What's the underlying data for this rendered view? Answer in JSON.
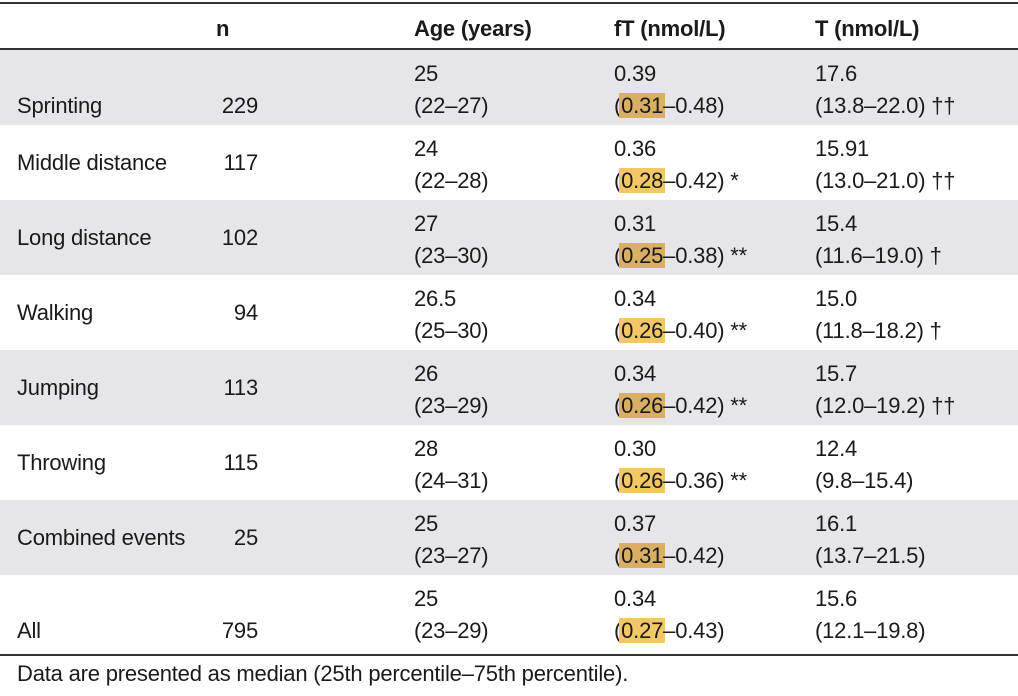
{
  "header": {
    "event": "",
    "n": "n",
    "age": "Age (years)",
    "ft": "fT (nmol/L)",
    "t": "T (nmol/L)"
  },
  "rows": [
    {
      "event": "Sprinting",
      "n": "229",
      "age_median": "25",
      "age_range": "(22–27)",
      "ft_median": "0.39",
      "ft_open": "(",
      "ft_low": "0.31",
      "ft_rest": "–0.48)",
      "t_median": "17.6",
      "t_range": "(13.8–22.0) ††"
    },
    {
      "event": "Middle distance",
      "n": "117",
      "age_median": "24",
      "age_range": "(22–28)",
      "ft_median": "0.36",
      "ft_open": "(",
      "ft_low": "0.28",
      "ft_rest": "–0.42) *",
      "t_median": "15.91",
      "t_range": "(13.0–21.0) ††"
    },
    {
      "event": "Long distance",
      "n": "102",
      "age_median": "27",
      "age_range": "(23–30)",
      "ft_median": "0.31",
      "ft_open": "(",
      "ft_low": "0.25",
      "ft_rest": "–0.38) **",
      "t_median": "15.4",
      "t_range": "(11.6–19.0) †"
    },
    {
      "event": "Walking",
      "n": "94",
      "age_median": "26.5",
      "age_range": "(25–30)",
      "ft_median": "0.34",
      "ft_open": "(",
      "ft_low": "0.26",
      "ft_rest": "–0.40) **",
      "t_median": "15.0",
      "t_range": "(11.8–18.2) †"
    },
    {
      "event": "Jumping",
      "n": "113",
      "age_median": "26",
      "age_range": "(23–29)",
      "ft_median": "0.34",
      "ft_open": "(",
      "ft_low": "0.26",
      "ft_rest": "–0.42) **",
      "t_median": "15.7",
      "t_range": "(12.0–19.2) ††"
    },
    {
      "event": "Throwing",
      "n": "115",
      "age_median": "28",
      "age_range": "(24–31)",
      "ft_median": "0.30",
      "ft_open": "(",
      "ft_low": "0.26",
      "ft_rest": "–0.36) **",
      "t_median": "12.4",
      "t_range": "(9.8–15.4)"
    },
    {
      "event": "Combined events",
      "n": "25",
      "age_median": "25",
      "age_range": "(23–27)",
      "ft_median": "0.37",
      "ft_open": "(",
      "ft_low": "0.31",
      "ft_rest": "–0.42)",
      "t_median": "16.1",
      "t_range": "(13.7–21.5)"
    },
    {
      "event": "All",
      "n": "795",
      "age_median": "25",
      "age_range": "(23–29)",
      "ft_median": "0.34",
      "ft_open": "(",
      "ft_low": "0.27",
      "ft_rest": "–0.43)",
      "t_median": "15.6",
      "t_range": "(12.1–19.8)"
    }
  ],
  "footnote": "Data are presented as median (25th percentile–75th percentile).",
  "colors": {
    "row_shade": "#e6e6e9",
    "highlight": "#f3c766",
    "highlight_dark": "#d9b063",
    "rule": "#333333"
  }
}
